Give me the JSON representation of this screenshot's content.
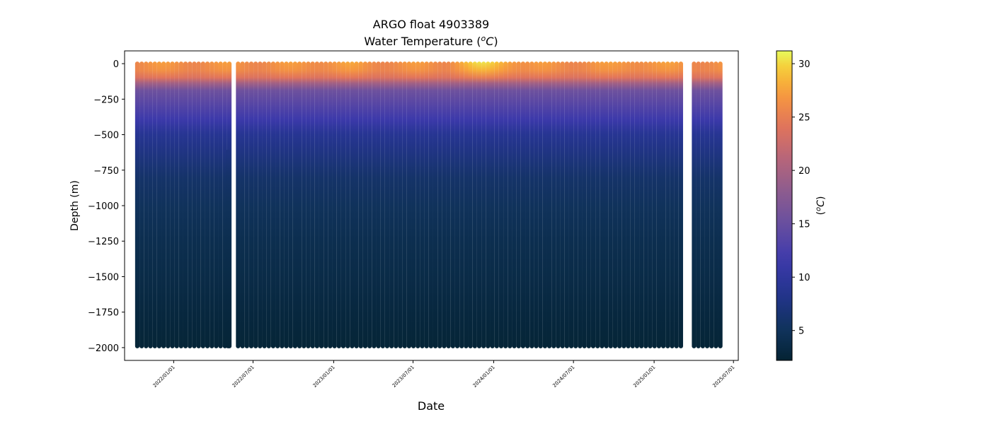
{
  "chart_data": {
    "type": "scatter",
    "title_line1": "ARGO float 4903389",
    "title_line2_prefix": "Water Temperature (",
    "title_line2_sup": "o",
    "title_line2_unit": "C",
    "title_line2_suffix": ")",
    "xlabel": "Date",
    "ylabel": "Depth (m)",
    "xlim": [
      "2021-09-11",
      "2025-07-12"
    ],
    "ylim": [
      -2090,
      90
    ],
    "x_ticks": [
      {
        "date": "2022-01-01",
        "label": "2022/01/01"
      },
      {
        "date": "2022-07-01",
        "label": "2022/07/01"
      },
      {
        "date": "2023-01-01",
        "label": "2023/01/01"
      },
      {
        "date": "2023-07-01",
        "label": "2023/07/01"
      },
      {
        "date": "2024-01-01",
        "label": "2024/01/01"
      },
      {
        "date": "2024-07-01",
        "label": "2024/07/01"
      },
      {
        "date": "2025-01-01",
        "label": "2025/01/01"
      },
      {
        "date": "2025-07-01",
        "label": "2025/07/01"
      }
    ],
    "y_ticks": [
      0,
      -250,
      -500,
      -750,
      -1000,
      -1250,
      -1500,
      -1750,
      -2000
    ],
    "colorbar": {
      "label_prefix": "(",
      "label_sup": "o",
      "label_unit": "C",
      "label_suffix": ")",
      "range": [
        2.2,
        31.2
      ],
      "ticks": [
        5,
        10,
        15,
        20,
        25,
        30
      ],
      "colormap": "thermal"
    },
    "profiles": {
      "first_date": "2021-10-10",
      "last_date": "2025-06-01",
      "gap_dates": [
        "2022-05-15",
        "2025-03-18"
      ],
      "profile_depth_m": -1980,
      "short_profile": {
        "date": "2022-05-05",
        "top_m": -620,
        "bottom_m": -1980
      },
      "temperature_profile": [
        {
          "depth": 0,
          "temp": 26.5
        },
        {
          "depth": -60,
          "temp": 26.0
        },
        {
          "depth": -110,
          "temp": 24.0
        },
        {
          "depth": -150,
          "temp": 19.5
        },
        {
          "depth": -200,
          "temp": 15.5
        },
        {
          "depth": -300,
          "temp": 13.5
        },
        {
          "depth": -400,
          "temp": 11.5
        },
        {
          "depth": -500,
          "temp": 9.0
        },
        {
          "depth": -650,
          "temp": 7.5
        },
        {
          "depth": -800,
          "temp": 6.0
        },
        {
          "depth": -1000,
          "temp": 5.0
        },
        {
          "depth": -1250,
          "temp": 4.2
        },
        {
          "depth": -1500,
          "temp": 3.6
        },
        {
          "depth": -1750,
          "temp": 3.0
        },
        {
          "depth": -2000,
          "temp": 2.5
        }
      ],
      "surface_temperature_peak": {
        "date": "2023-12-15",
        "temp": 30.0
      }
    }
  }
}
